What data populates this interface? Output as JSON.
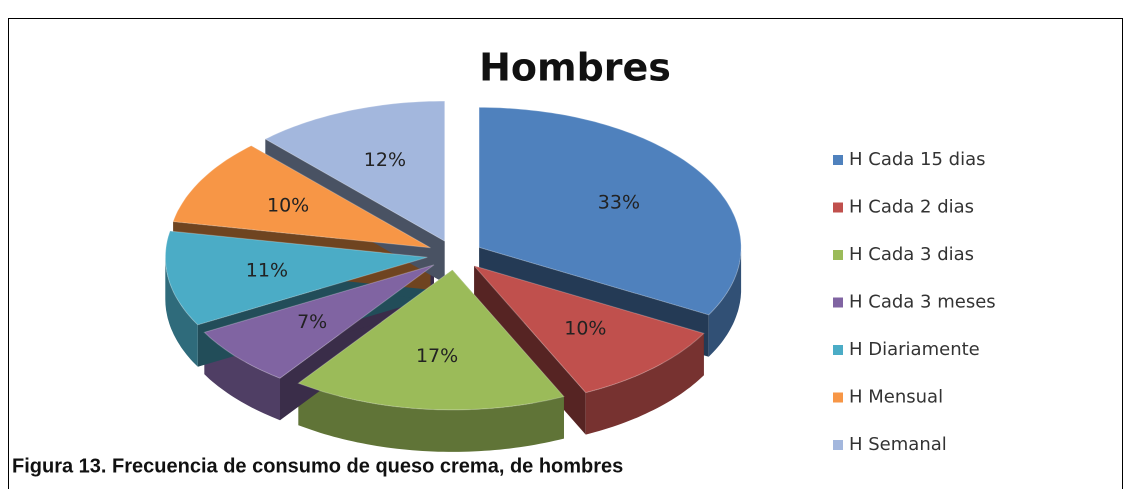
{
  "chart_data": {
    "type": "pie",
    "title": "Hombres",
    "categories": [
      "H Cada 15 dias",
      "H Cada 2 dias",
      "H Cada 3 dias",
      "H Cada 3 meses",
      "H Diariamente",
      "H Mensual",
      "H Semanal"
    ],
    "values": [
      33,
      10,
      17,
      7,
      11,
      10,
      12
    ],
    "value_labels": [
      "33%",
      "10%",
      "17%",
      "7%",
      "11%",
      "10%",
      "12%"
    ],
    "colors": [
      "#4f81bd",
      "#c0504d",
      "#9bbb59",
      "#8064a2",
      "#4bacc6",
      "#f79646",
      "#a3b7dd"
    ],
    "legend": "right"
  },
  "caption": "Figura 13. Frecuencia de consumo de queso crema, de hombres"
}
